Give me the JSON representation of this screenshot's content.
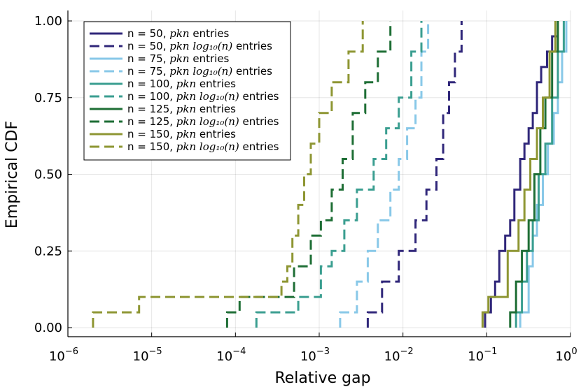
{
  "chart_data": {
    "type": "line",
    "xscale": "log10",
    "xlabel": "Relative gap",
    "ylabel": "Empirical CDF",
    "xlim_exp": [
      -6,
      0
    ],
    "xticks": [
      {
        "base": "10",
        "exp": "−6"
      },
      {
        "base": "10",
        "exp": "−5"
      },
      {
        "base": "10",
        "exp": "−4"
      },
      {
        "base": "10",
        "exp": "−3"
      },
      {
        "base": "10",
        "exp": "−2"
      },
      {
        "base": "10",
        "exp": "−1"
      },
      {
        "base": "10",
        "exp": "0"
      }
    ],
    "ylim": [
      0,
      1
    ],
    "yticks": [
      "0.00",
      "0.25",
      "0.50",
      "0.75",
      "1.00"
    ],
    "grid": true,
    "legend_position": "top-left",
    "series": [
      {
        "name": "n = 50, pkn entries",
        "legend_prefix": "n = 50, ",
        "legend_math": "pkn",
        "legend_suffix": " entries",
        "color": "#30277a",
        "dashed": false,
        "x_exp": [
          -1.02,
          -0.95,
          -0.9,
          -0.85,
          -0.78,
          -0.72,
          -0.67,
          -0.6,
          -0.55,
          -0.5,
          -0.45,
          -0.4,
          -0.35,
          -0.28,
          -0.22,
          -0.15
        ],
        "y": [
          0.05,
          0.1,
          0.15,
          0.25,
          0.3,
          0.35,
          0.45,
          0.55,
          0.6,
          0.65,
          0.7,
          0.8,
          0.85,
          0.9,
          0.95,
          1.0
        ]
      },
      {
        "name": "n = 50, pkn log10(n) entries",
        "legend_prefix": "n = 50, ",
        "legend_math": "pkn log₁₀(n)",
        "legend_suffix": " entries",
        "color": "#30277a",
        "dashed": true,
        "x_exp": [
          -2.42,
          -2.25,
          -2.05,
          -1.85,
          -1.72,
          -1.6,
          -1.52,
          -1.45,
          -1.38,
          -1.3
        ],
        "y": [
          0.05,
          0.15,
          0.25,
          0.35,
          0.45,
          0.55,
          0.7,
          0.8,
          0.9,
          1.0
        ]
      },
      {
        "name": "n = 75, pkn entries",
        "legend_prefix": "n = 75, ",
        "legend_math": "pkn",
        "legend_suffix": " entries",
        "color": "#88c8e8",
        "dashed": false,
        "x_exp": [
          -0.6,
          -0.5,
          -0.45,
          -0.4,
          -0.33,
          -0.27,
          -0.2,
          -0.15,
          -0.1,
          -0.05
        ],
        "y": [
          0.05,
          0.2,
          0.3,
          0.4,
          0.5,
          0.6,
          0.7,
          0.8,
          0.9,
          1.0
        ]
      },
      {
        "name": "n = 75, pkn log10(n) entries",
        "legend_prefix": "n = 75, ",
        "legend_math": "pkn log₁₀(n)",
        "legend_suffix": " entries",
        "color": "#88c8e8",
        "dashed": true,
        "x_exp": [
          -2.75,
          -2.55,
          -2.42,
          -2.3,
          -2.15,
          -2.05,
          -1.95,
          -1.85,
          -1.78,
          -1.7
        ],
        "y": [
          0.05,
          0.15,
          0.25,
          0.35,
          0.45,
          0.55,
          0.65,
          0.75,
          0.9,
          1.0
        ]
      },
      {
        "name": "n = 100, pkn entries",
        "legend_prefix": "n = 100, ",
        "legend_math": "pkn",
        "legend_suffix": " entries",
        "color": "#3a9e90",
        "dashed": false,
        "x_exp": [
          -0.65,
          -0.58,
          -0.52,
          -0.45,
          -0.38,
          -0.3,
          -0.22,
          -0.15,
          -0.08
        ],
        "y": [
          0.05,
          0.15,
          0.25,
          0.35,
          0.5,
          0.6,
          0.75,
          0.9,
          1.0
        ]
      },
      {
        "name": "n = 100, pkn log10(n) entries",
        "legend_prefix": "n = 100, ",
        "legend_math": "pkn log₁₀(n)",
        "legend_suffix": " entries",
        "color": "#3a9e90",
        "dashed": true,
        "x_exp": [
          -3.75,
          -3.25,
          -2.98,
          -2.85,
          -2.7,
          -2.55,
          -2.35,
          -2.2,
          -2.05,
          -1.9,
          -1.78
        ],
        "y": [
          0.05,
          0.1,
          0.2,
          0.25,
          0.35,
          0.45,
          0.55,
          0.65,
          0.75,
          0.9,
          1.0
        ]
      },
      {
        "name": "n = 125, pkn entries",
        "legend_prefix": "n = 125, ",
        "legend_math": "pkn",
        "legend_suffix": " entries",
        "color": "#1e6e35",
        "dashed": false,
        "x_exp": [
          -0.72,
          -0.65,
          -0.58,
          -0.5,
          -0.43,
          -0.36,
          -0.3,
          -0.22,
          -0.15
        ],
        "y": [
          0.05,
          0.15,
          0.25,
          0.35,
          0.5,
          0.65,
          0.75,
          0.9,
          1.0
        ]
      },
      {
        "name": "n = 125, pkn log10(n) entries",
        "legend_prefix": "n = 125, ",
        "legend_math": "pkn log₁₀(n)",
        "legend_suffix": " entries",
        "color": "#1e6e35",
        "dashed": true,
        "x_exp": [
          -4.1,
          -3.95,
          -3.3,
          -3.1,
          -2.98,
          -2.85,
          -2.72,
          -2.6,
          -2.45,
          -2.3,
          -2.15
        ],
        "y": [
          0.05,
          0.1,
          0.2,
          0.3,
          0.35,
          0.45,
          0.55,
          0.7,
          0.8,
          0.9,
          1.0
        ]
      },
      {
        "name": "n = 150, pkn entries",
        "legend_prefix": "n = 150, ",
        "legend_math": "pkn",
        "legend_suffix": " entries",
        "color": "#8e9633",
        "dashed": false,
        "x_exp": [
          -1.05,
          -0.98,
          -0.75,
          -0.62,
          -0.55,
          -0.48,
          -0.4,
          -0.33,
          -0.25,
          -0.18
        ],
        "y": [
          0.05,
          0.1,
          0.25,
          0.35,
          0.45,
          0.55,
          0.65,
          0.75,
          0.9,
          1.0
        ]
      },
      {
        "name": "n = 150, pkn log10(n) entries",
        "legend_prefix": "n = 150, ",
        "legend_math": "pkn log₁₀(n)",
        "legend_suffix": " entries",
        "color": "#8e9633",
        "dashed": true,
        "x_exp": [
          -5.7,
          -5.15,
          -3.45,
          -3.38,
          -3.32,
          -3.25,
          -3.18,
          -3.1,
          -3.0,
          -2.85,
          -2.65,
          -2.48
        ],
        "y": [
          0.05,
          0.1,
          0.15,
          0.2,
          0.3,
          0.4,
          0.5,
          0.6,
          0.7,
          0.8,
          0.9,
          1.0
        ]
      }
    ]
  }
}
